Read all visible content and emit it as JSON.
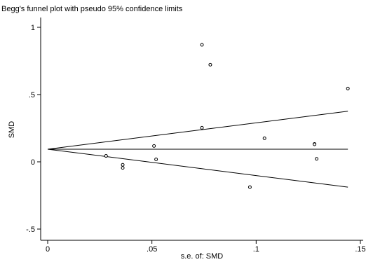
{
  "chart_data": {
    "type": "scatter",
    "title": "Begg's funnel plot with pseudo 95% confidence limits",
    "xlabel": "s.e. of: SMD",
    "ylabel": "SMD",
    "xlim": [
      0,
      0.15
    ],
    "ylim": [
      -0.5,
      1
    ],
    "x_ticks": [
      {
        "value": 0,
        "label": "0"
      },
      {
        "value": 0.05,
        "label": ".05"
      },
      {
        "value": 0.1,
        "label": ".1"
      },
      {
        "value": 0.15,
        "label": ".15"
      }
    ],
    "y_ticks": [
      {
        "value": -0.5,
        "label": "-.5"
      },
      {
        "value": 0,
        "label": "0"
      },
      {
        "value": 0.5,
        "label": ".5"
      },
      {
        "value": 1,
        "label": "1"
      }
    ],
    "grid": false,
    "pooled_estimate": 0.094,
    "pseudo_ci_z": 1.96,
    "points": [
      {
        "x": 0.028,
        "y": 0.044
      },
      {
        "x": 0.036,
        "y": -0.022
      },
      {
        "x": 0.036,
        "y": -0.045
      },
      {
        "x": 0.051,
        "y": 0.118
      },
      {
        "x": 0.052,
        "y": 0.018
      },
      {
        "x": 0.074,
        "y": 0.87
      },
      {
        "x": 0.074,
        "y": 0.253
      },
      {
        "x": 0.078,
        "y": 0.722
      },
      {
        "x": 0.097,
        "y": -0.188
      },
      {
        "x": 0.104,
        "y": 0.175
      },
      {
        "x": 0.128,
        "y": 0.133
      },
      {
        "x": 0.128,
        "y": 0.13
      },
      {
        "x": 0.129,
        "y": 0.022
      },
      {
        "x": 0.144,
        "y": 0.545
      }
    ]
  }
}
